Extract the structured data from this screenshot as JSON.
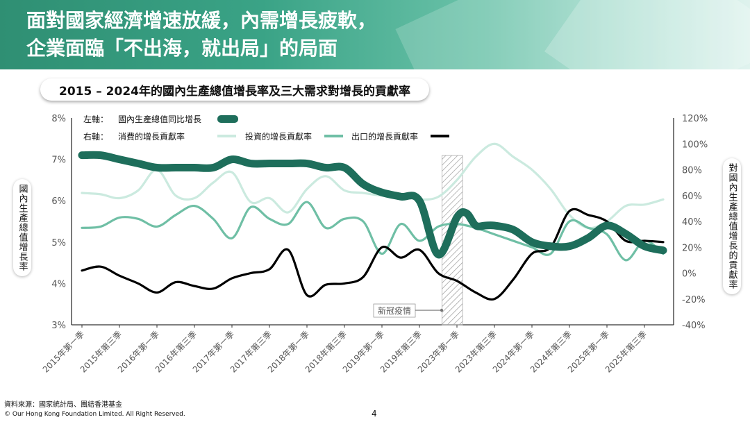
{
  "header": {
    "title_line1": "面對國家經濟增速放緩，內需增長疲軟，",
    "title_line2": "企業面臨「不出海，就出局」的局面"
  },
  "footer": {
    "source": "資料來源：國家統計局、團結香港基金",
    "copyright": "© Our Hong Kong Foundation Limited. All Right Reserved.",
    "page": "4"
  },
  "colors": {
    "gdp": "#1e6e5b",
    "consumption": "#cbeadf",
    "investment": "#6fbfa5",
    "export": "#000000"
  },
  "chart_data": {
    "type": "line",
    "title": "2015 – 2024年的國內生產總值增長率及三大需求對增長的貢獻率",
    "ylabel_left": "國內生產總值增長率",
    "ylabel_right": "對國內生產總值增長的貢獻率",
    "ylim_left": [
      3,
      8
    ],
    "ylim_right": [
      -40,
      120
    ],
    "yticks_left": [
      "3%",
      "4%",
      "5%",
      "6%",
      "7%",
      "8%"
    ],
    "yticks_right": [
      "-40%",
      "-20%",
      "0%",
      "20%",
      "40%",
      "60%",
      "80%",
      "100%",
      "120%"
    ],
    "categories": [
      "2015年第一季",
      "2015年第三季",
      "2016年第一季",
      "2016年第三季",
      "2017年第一季",
      "2017年第三季",
      "2018年第一季",
      "2018年第三季",
      "2019年第一季",
      "2019年第三季",
      "2023年第一季",
      "2023年第三季",
      "2024年第一季",
      "2024年第三季",
      "2025年第一季",
      "2025年第三季"
    ],
    "legend": {
      "left_axis_label": "左軸：",
      "right_axis_label": "右軸：",
      "gdp": "國內生產總值同比增長",
      "consumption": "消費的增長貢獻率",
      "investment": "投資的增長貢獻率",
      "export": "出口的增長貢獻率"
    },
    "annotation": "新冠疫情",
    "series": [
      {
        "name": "國內生產總值同比增長",
        "axis": "left",
        "x": [
          0,
          0.5,
          1,
          1.5,
          2,
          2.5,
          3,
          3.5,
          4,
          4.5,
          5,
          5.5,
          6,
          6.5,
          7,
          7.5,
          8,
          8.5,
          9,
          9.5,
          10,
          10.25,
          10.5,
          10.75,
          11,
          11.5,
          12,
          12.5,
          13,
          13.5,
          14,
          14.5,
          15,
          15.5
        ],
        "values": [
          7.1,
          7.1,
          7.0,
          6.9,
          6.8,
          6.8,
          6.8,
          6.8,
          7.0,
          6.9,
          6.9,
          6.9,
          6.9,
          6.8,
          6.8,
          6.4,
          6.2,
          6.1,
          6.0,
          4.7,
          5.6,
          5.7,
          5.4,
          5.4,
          5.4,
          5.3,
          5.0,
          4.9,
          4.9,
          5.1,
          5.4,
          5.2,
          4.9,
          4.8
        ]
      },
      {
        "name": "消費的增長貢獻率",
        "axis": "right",
        "x": [
          0,
          0.5,
          1,
          1.5,
          2,
          2.5,
          3,
          3.5,
          4,
          4.5,
          5,
          5.5,
          6,
          6.5,
          7,
          7.5,
          8,
          8.5,
          9,
          9.5,
          10,
          10.5,
          11,
          11.5,
          12,
          12.5,
          13,
          13.5,
          14,
          14.5,
          15,
          15.5
        ],
        "values": [
          62,
          61,
          58,
          64,
          80,
          60,
          58,
          70,
          78,
          55,
          58,
          47,
          65,
          75,
          64,
          62,
          60,
          60,
          57,
          59,
          72,
          90,
          100,
          90,
          80,
          65,
          45,
          35,
          40,
          52,
          53,
          57
        ]
      },
      {
        "name": "投資的增長貢獻率",
        "axis": "right",
        "x": [
          0,
          0.5,
          1,
          1.5,
          2,
          2.5,
          3,
          3.5,
          4,
          4.5,
          5,
          5.5,
          6,
          6.5,
          7,
          7.5,
          8,
          8.5,
          9,
          9.5,
          10,
          10.5,
          11,
          11.5,
          12,
          12.5,
          13,
          13.5,
          14,
          14.5,
          15,
          15.5
        ],
        "values": [
          35,
          36,
          43,
          42,
          36,
          45,
          52,
          42,
          27,
          51,
          42,
          38,
          55,
          35,
          42,
          40,
          15,
          38,
          25,
          36,
          38,
          35,
          30,
          25,
          20,
          15,
          40,
          35,
          30,
          10,
          25,
          15
        ]
      },
      {
        "name": "出口的增長貢獻率",
        "axis": "right",
        "x": [
          0,
          0.5,
          1,
          1.5,
          2,
          2.5,
          3,
          3.5,
          4,
          4.5,
          5,
          5.5,
          6,
          6.5,
          7,
          7.5,
          8,
          8.5,
          9,
          9.5,
          10,
          10.5,
          11,
          11.5,
          12,
          12.5,
          13,
          13.5,
          14,
          14.5,
          15,
          15.5
        ],
        "values": [
          2,
          5,
          -2,
          -8,
          -15,
          -7,
          -10,
          -12,
          -4,
          0,
          3,
          18,
          -17,
          -9,
          -8,
          -3,
          20,
          12,
          18,
          0,
          -6,
          -15,
          -20,
          -5,
          15,
          20,
          48,
          45,
          40,
          25,
          25,
          24
        ]
      }
    ]
  }
}
